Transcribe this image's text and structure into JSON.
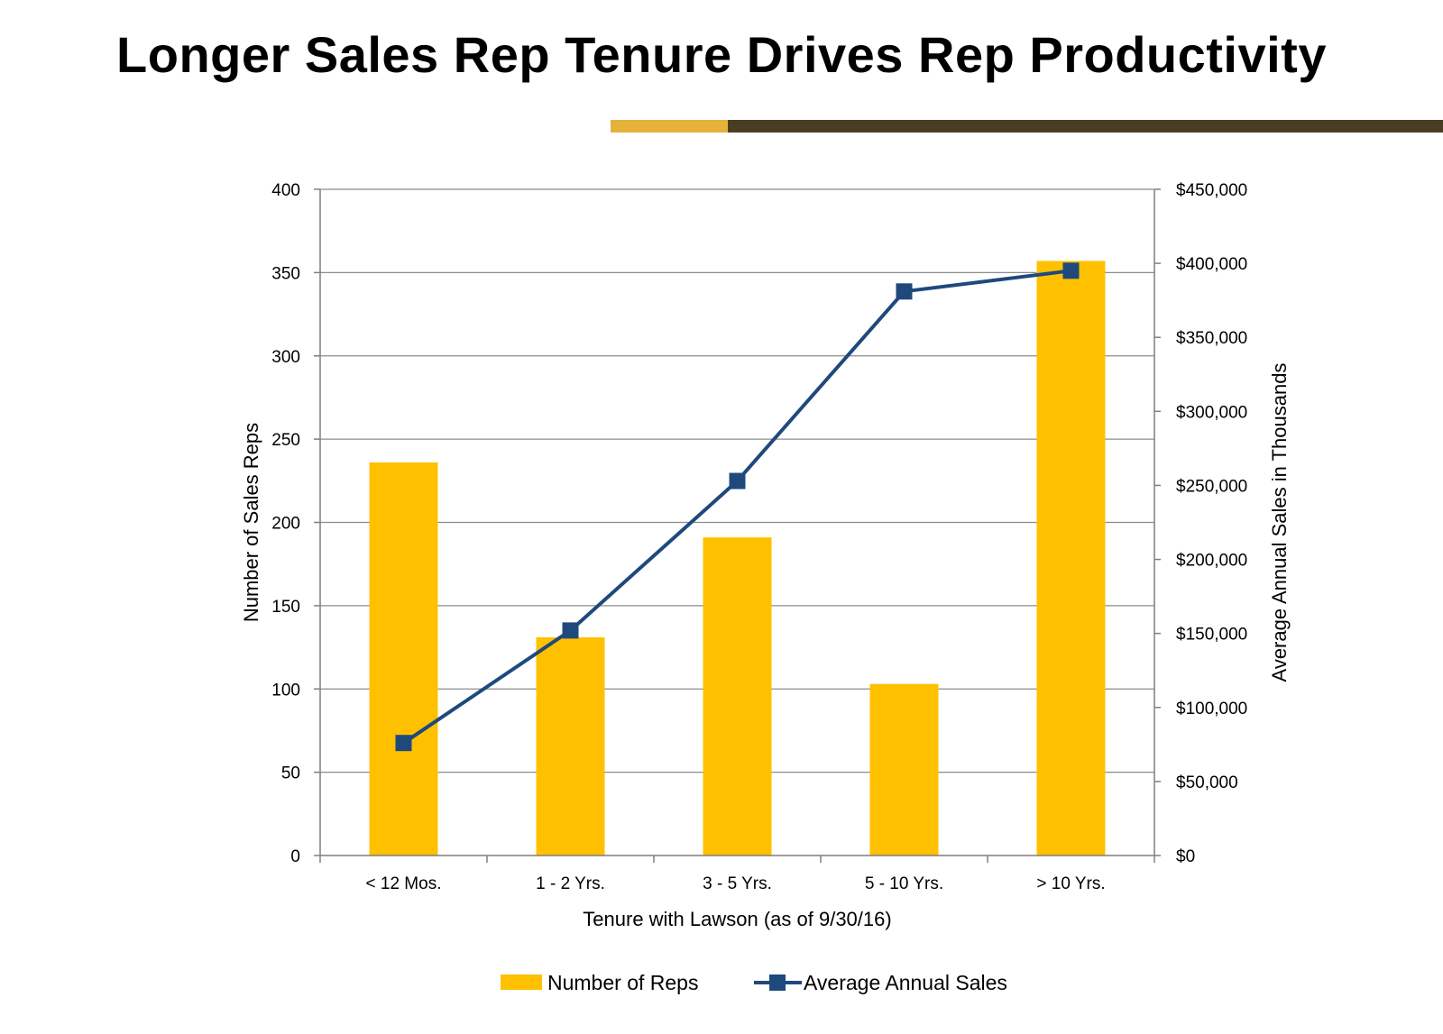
{
  "title": "Longer Sales Rep Tenure Drives Rep Productivity",
  "colors": {
    "bar": "#FFC000",
    "line": "#1F497D",
    "accent_gold": "#E5B13B",
    "accent_dark": "#4A3E22",
    "grid": "#8C8C8C"
  },
  "chart_data": {
    "type": "bar",
    "categories": [
      "< 12 Mos.",
      "1 - 2 Yrs.",
      "3 - 5 Yrs.",
      "5 - 10 Yrs.",
      "> 10 Yrs."
    ],
    "series": [
      {
        "name": "Number of Reps",
        "type": "bar",
        "axis": "left",
        "values": [
          236,
          131,
          191,
          103,
          357
        ]
      },
      {
        "name": "Average Annual Sales",
        "type": "line",
        "axis": "right",
        "marker": "square",
        "values": [
          76000,
          152000,
          253000,
          381000,
          395000
        ]
      }
    ],
    "xlabel": "Tenure with Lawson (as of 9/30/16)",
    "ylabel": "Number of Sales Reps",
    "y2label": "Average Annual Sales in Thousands",
    "ylim": [
      0,
      400
    ],
    "yticks": [
      "0",
      "50",
      "100",
      "150",
      "200",
      "250",
      "300",
      "350",
      "400"
    ],
    "y2lim": [
      0,
      450000
    ],
    "y2ticks": [
      "$0",
      "$50,000",
      "$100,000",
      "$150,000",
      "$200,000",
      "$250,000",
      "$300,000",
      "$350,000",
      "$400,000",
      "$450,000"
    ],
    "grid": true,
    "legend": "bottom"
  }
}
